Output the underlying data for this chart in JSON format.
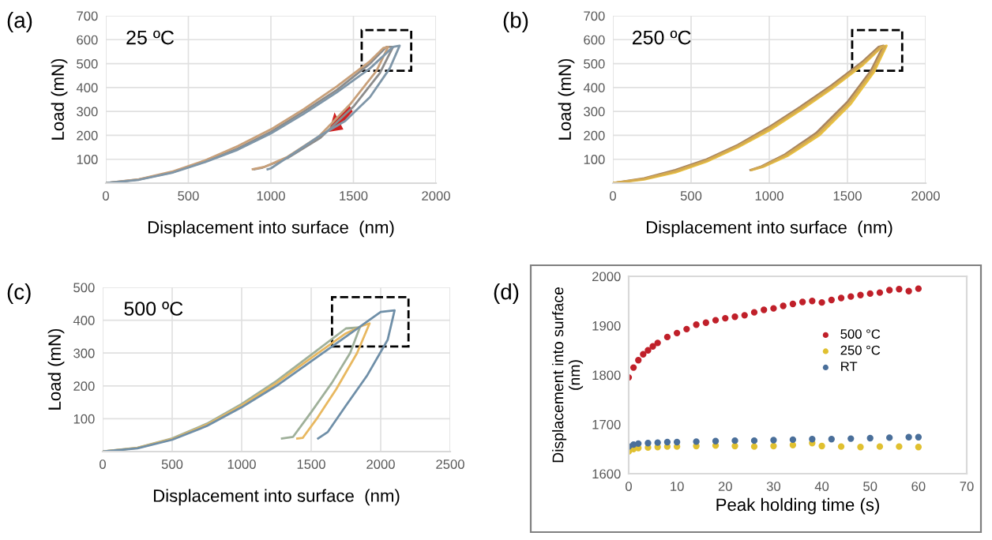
{
  "chart_data": [
    {
      "type": "line",
      "xlabel": "Displacement into surface  (nm)",
      "ylabel": "Load (mN)",
      "annotations": [
        "(a)",
        "25 ºC"
      ],
      "xlim": [
        0,
        2000
      ],
      "xticks": [
        0,
        500,
        1000,
        1500,
        2000
      ],
      "ylim": [
        0,
        700
      ],
      "yticks": [
        100,
        200,
        300,
        400,
        500,
        600,
        700
      ],
      "grid": true,
      "series": [
        {
          "color": "#8c8c8c",
          "x": [
            0,
            200,
            400,
            600,
            800,
            1000,
            1200,
            1400,
            1600,
            1700,
            1740,
            1660,
            1500,
            1300,
            1100,
            950,
            900
          ],
          "values": [
            0,
            15,
            45,
            90,
            145,
            215,
            300,
            390,
            500,
            570,
            570,
            460,
            320,
            190,
            105,
            65,
            58
          ]
        },
        {
          "color": "#c8a07a",
          "x": [
            0,
            200,
            400,
            600,
            800,
            1000,
            1200,
            1400,
            1600,
            1680,
            1710,
            1640,
            1480,
            1290,
            1100,
            960,
            890
          ],
          "values": [
            0,
            16,
            48,
            95,
            155,
            225,
            310,
            405,
            510,
            565,
            570,
            470,
            330,
            195,
            110,
            68,
            58
          ]
        },
        {
          "color": "#7f96a8",
          "x": [
            0,
            200,
            400,
            600,
            800,
            1000,
            1200,
            1400,
            1600,
            1740,
            1780,
            1720,
            1600,
            1450,
            1300,
            1150,
            1000,
            980
          ],
          "values": [
            0,
            14,
            43,
            88,
            140,
            208,
            290,
            380,
            480,
            570,
            575,
            480,
            360,
            260,
            200,
            130,
            62,
            58
          ]
        }
      ]
    },
    {
      "type": "line",
      "xlabel": "Displacement into surface  (nm)",
      "ylabel": "Load (mN)",
      "annotations": [
        "(b)",
        "250 ºC"
      ],
      "xlim": [
        0,
        2000
      ],
      "xticks": [
        0,
        500,
        1000,
        1500,
        2000
      ],
      "ylim": [
        0,
        700
      ],
      "yticks": [
        100,
        200,
        300,
        400,
        500,
        600,
        700
      ],
      "grid": true,
      "series": [
        {
          "color": "#a88460",
          "x": [
            0,
            200,
            400,
            600,
            800,
            1000,
            1200,
            1400,
            1600,
            1700,
            1730,
            1650,
            1500,
            1300,
            1100,
            950,
            880
          ],
          "values": [
            0,
            20,
            55,
            100,
            160,
            235,
            320,
            410,
            510,
            570,
            575,
            470,
            340,
            210,
            120,
            70,
            55
          ]
        },
        {
          "color": "#e8c040",
          "x": [
            0,
            200,
            400,
            600,
            800,
            1000,
            1200,
            1400,
            1600,
            1720,
            1750,
            1670,
            1520,
            1320,
            1120,
            960,
            890
          ],
          "values": [
            0,
            15,
            45,
            90,
            150,
            220,
            305,
            395,
            495,
            570,
            575,
            465,
            330,
            200,
            115,
            68,
            55
          ]
        },
        {
          "color": "#d4aa50",
          "x": [
            0,
            200,
            400,
            600,
            800,
            1000,
            1200,
            1400,
            1600,
            1710,
            1740,
            1660,
            1510,
            1310,
            1110,
            955,
            885
          ],
          "values": [
            0,
            18,
            50,
            95,
            155,
            228,
            312,
            402,
            502,
            568,
            572,
            468,
            335,
            205,
            118,
            69,
            55
          ]
        }
      ]
    },
    {
      "type": "line",
      "xlabel": "Displacement into surface  (nm)",
      "ylabel": "Load (mN)",
      "annotations": [
        "(c)",
        "500 ºC"
      ],
      "xlim": [
        0,
        2500
      ],
      "xticks": [
        0,
        500,
        1000,
        1500,
        2000,
        2500
      ],
      "ylim": [
        0,
        500
      ],
      "yticks": [
        100,
        200,
        300,
        400,
        500
      ],
      "grid": true,
      "series": [
        {
          "color": "#9fb09a",
          "x": [
            0,
            250,
            500,
            750,
            1000,
            1250,
            1500,
            1750,
            1850,
            1780,
            1650,
            1500,
            1370,
            1290
          ],
          "values": [
            0,
            12,
            40,
            85,
            145,
            215,
            295,
            375,
            378,
            300,
            210,
            120,
            45,
            40
          ]
        },
        {
          "color": "#e8b860",
          "x": [
            0,
            250,
            500,
            750,
            1000,
            1250,
            1500,
            1750,
            1880,
            1920,
            1830,
            1680,
            1540,
            1440,
            1400
          ],
          "values": [
            0,
            11,
            38,
            82,
            140,
            208,
            285,
            360,
            385,
            390,
            300,
            190,
            100,
            42,
            40
          ]
        },
        {
          "color": "#6f8fa8",
          "x": [
            0,
            250,
            500,
            750,
            1000,
            1250,
            1500,
            1750,
            2000,
            2100,
            2050,
            1900,
            1750,
            1620,
            1550
          ],
          "values": [
            0,
            10,
            36,
            78,
            135,
            200,
            275,
            350,
            425,
            430,
            340,
            230,
            140,
            60,
            40
          ]
        }
      ]
    },
    {
      "type": "scatter",
      "xlabel": "Peak holding time (s)",
      "ylabel": "Displacement into surface\n(nm)",
      "annotations": [
        "(d)"
      ],
      "xlim": [
        0,
        70
      ],
      "xticks": [
        0,
        10,
        20,
        30,
        40,
        50,
        60,
        70
      ],
      "ylim": [
        1600,
        2000
      ],
      "yticks": [
        1600,
        1700,
        1800,
        1900,
        2000
      ],
      "grid": false,
      "legend": "right",
      "marker": "circle",
      "series": [
        {
          "name": "500 °C",
          "color": "#c0202a",
          "x": [
            0,
            1,
            2,
            3,
            4,
            5,
            6,
            8,
            10,
            12,
            14,
            16,
            18,
            20,
            22,
            24,
            26,
            28,
            30,
            32,
            34,
            36,
            38,
            40,
            42,
            44,
            46,
            48,
            50,
            52,
            54,
            56,
            58,
            60
          ],
          "values": [
            1795,
            1815,
            1830,
            1842,
            1850,
            1858,
            1865,
            1877,
            1885,
            1893,
            1902,
            1906,
            1911,
            1915,
            1918,
            1921,
            1927,
            1932,
            1935,
            1940,
            1944,
            1948,
            1950,
            1947,
            1952,
            1956,
            1959,
            1962,
            1965,
            1967,
            1972,
            1974,
            1970,
            1975
          ]
        },
        {
          "name": "250 °C",
          "color": "#e0c030",
          "x": [
            0,
            1,
            2,
            4,
            6,
            8,
            10,
            14,
            18,
            22,
            26,
            30,
            34,
            38,
            40,
            44,
            48,
            52,
            56,
            60
          ],
          "values": [
            1645,
            1650,
            1652,
            1653,
            1654,
            1655,
            1655,
            1656,
            1657,
            1656,
            1655,
            1656,
            1658,
            1662,
            1656,
            1655,
            1654,
            1655,
            1655,
            1654
          ]
        },
        {
          "name": "RT",
          "color": "#4a6f9a",
          "x": [
            0,
            1,
            2,
            4,
            6,
            8,
            10,
            14,
            18,
            22,
            26,
            30,
            34,
            38,
            42,
            46,
            50,
            54,
            58,
            60
          ],
          "values": [
            1655,
            1659,
            1661,
            1662,
            1663,
            1664,
            1664,
            1665,
            1666,
            1667,
            1667,
            1668,
            1669,
            1670,
            1670,
            1671,
            1672,
            1673,
            1674,
            1674
          ]
        }
      ]
    }
  ]
}
